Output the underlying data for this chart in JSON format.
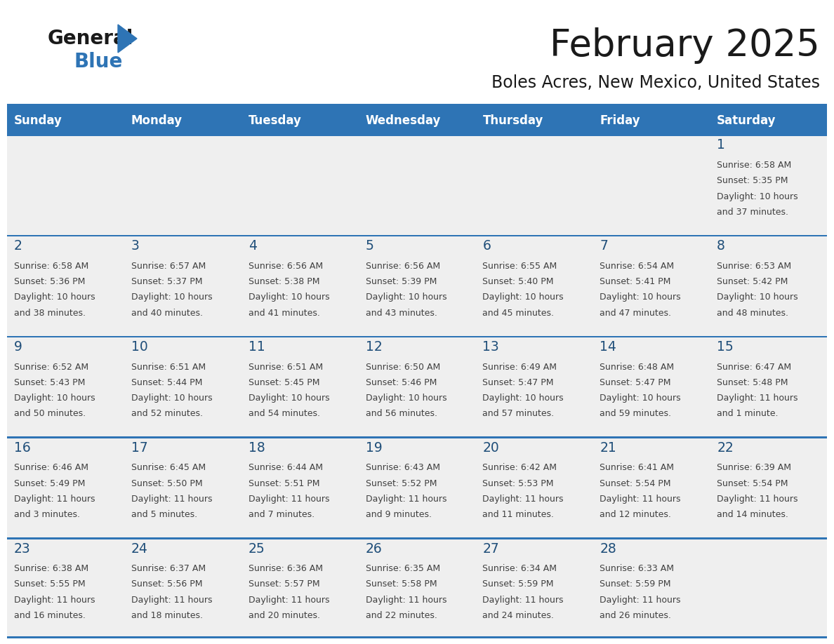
{
  "title": "February 2025",
  "subtitle": "Boles Acres, New Mexico, United States",
  "header_bg": "#2E74B5",
  "header_text_color": "#FFFFFF",
  "days_of_week": [
    "Sunday",
    "Monday",
    "Tuesday",
    "Wednesday",
    "Thursday",
    "Friday",
    "Saturday"
  ],
  "cell_bg": "#EFEFEF",
  "cell_text_color": "#404040",
  "day_num_color": "#1F4E79",
  "row_line_color": "#2E74B5",
  "title_color": "#1a1a1a",
  "subtitle_color": "#1a1a1a",
  "logo_general_color": "#1a1a1a",
  "logo_blue_color": "#2E74B5",
  "calendar_data": [
    [
      null,
      null,
      null,
      null,
      null,
      null,
      {
        "day": 1,
        "sunrise": "6:58 AM",
        "sunset": "5:35 PM",
        "daylight": "10 hours",
        "daylight2": "and 37 minutes."
      }
    ],
    [
      {
        "day": 2,
        "sunrise": "6:58 AM",
        "sunset": "5:36 PM",
        "daylight": "10 hours",
        "daylight2": "and 38 minutes."
      },
      {
        "day": 3,
        "sunrise": "6:57 AM",
        "sunset": "5:37 PM",
        "daylight": "10 hours",
        "daylight2": "and 40 minutes."
      },
      {
        "day": 4,
        "sunrise": "6:56 AM",
        "sunset": "5:38 PM",
        "daylight": "10 hours",
        "daylight2": "and 41 minutes."
      },
      {
        "day": 5,
        "sunrise": "6:56 AM",
        "sunset": "5:39 PM",
        "daylight": "10 hours",
        "daylight2": "and 43 minutes."
      },
      {
        "day": 6,
        "sunrise": "6:55 AM",
        "sunset": "5:40 PM",
        "daylight": "10 hours",
        "daylight2": "and 45 minutes."
      },
      {
        "day": 7,
        "sunrise": "6:54 AM",
        "sunset": "5:41 PM",
        "daylight": "10 hours",
        "daylight2": "and 47 minutes."
      },
      {
        "day": 8,
        "sunrise": "6:53 AM",
        "sunset": "5:42 PM",
        "daylight": "10 hours",
        "daylight2": "and 48 minutes."
      }
    ],
    [
      {
        "day": 9,
        "sunrise": "6:52 AM",
        "sunset": "5:43 PM",
        "daylight": "10 hours",
        "daylight2": "and 50 minutes."
      },
      {
        "day": 10,
        "sunrise": "6:51 AM",
        "sunset": "5:44 PM",
        "daylight": "10 hours",
        "daylight2": "and 52 minutes."
      },
      {
        "day": 11,
        "sunrise": "6:51 AM",
        "sunset": "5:45 PM",
        "daylight": "10 hours",
        "daylight2": "and 54 minutes."
      },
      {
        "day": 12,
        "sunrise": "6:50 AM",
        "sunset": "5:46 PM",
        "daylight": "10 hours",
        "daylight2": "and 56 minutes."
      },
      {
        "day": 13,
        "sunrise": "6:49 AM",
        "sunset": "5:47 PM",
        "daylight": "10 hours",
        "daylight2": "and 57 minutes."
      },
      {
        "day": 14,
        "sunrise": "6:48 AM",
        "sunset": "5:47 PM",
        "daylight": "10 hours",
        "daylight2": "and 59 minutes."
      },
      {
        "day": 15,
        "sunrise": "6:47 AM",
        "sunset": "5:48 PM",
        "daylight": "11 hours",
        "daylight2": "and 1 minute."
      }
    ],
    [
      {
        "day": 16,
        "sunrise": "6:46 AM",
        "sunset": "5:49 PM",
        "daylight": "11 hours",
        "daylight2": "and 3 minutes."
      },
      {
        "day": 17,
        "sunrise": "6:45 AM",
        "sunset": "5:50 PM",
        "daylight": "11 hours",
        "daylight2": "and 5 minutes."
      },
      {
        "day": 18,
        "sunrise": "6:44 AM",
        "sunset": "5:51 PM",
        "daylight": "11 hours",
        "daylight2": "and 7 minutes."
      },
      {
        "day": 19,
        "sunrise": "6:43 AM",
        "sunset": "5:52 PM",
        "daylight": "11 hours",
        "daylight2": "and 9 minutes."
      },
      {
        "day": 20,
        "sunrise": "6:42 AM",
        "sunset": "5:53 PM",
        "daylight": "11 hours",
        "daylight2": "and 11 minutes."
      },
      {
        "day": 21,
        "sunrise": "6:41 AM",
        "sunset": "5:54 PM",
        "daylight": "11 hours",
        "daylight2": "and 12 minutes."
      },
      {
        "day": 22,
        "sunrise": "6:39 AM",
        "sunset": "5:54 PM",
        "daylight": "11 hours",
        "daylight2": "and 14 minutes."
      }
    ],
    [
      {
        "day": 23,
        "sunrise": "6:38 AM",
        "sunset": "5:55 PM",
        "daylight": "11 hours",
        "daylight2": "and 16 minutes."
      },
      {
        "day": 24,
        "sunrise": "6:37 AM",
        "sunset": "5:56 PM",
        "daylight": "11 hours",
        "daylight2": "and 18 minutes."
      },
      {
        "day": 25,
        "sunrise": "6:36 AM",
        "sunset": "5:57 PM",
        "daylight": "11 hours",
        "daylight2": "and 20 minutes."
      },
      {
        "day": 26,
        "sunrise": "6:35 AM",
        "sunset": "5:58 PM",
        "daylight": "11 hours",
        "daylight2": "and 22 minutes."
      },
      {
        "day": 27,
        "sunrise": "6:34 AM",
        "sunset": "5:59 PM",
        "daylight": "11 hours",
        "daylight2": "and 24 minutes."
      },
      {
        "day": 28,
        "sunrise": "6:33 AM",
        "sunset": "5:59 PM",
        "daylight": "11 hours",
        "daylight2": "and 26 minutes."
      },
      null
    ]
  ]
}
